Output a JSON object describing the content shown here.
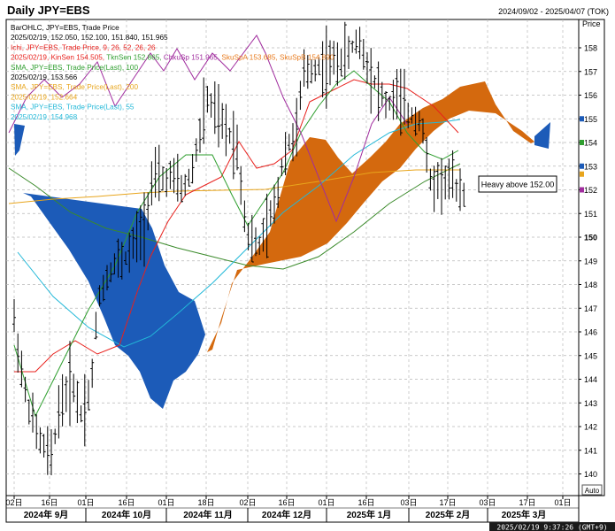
{
  "header": {
    "title": "Daily JPY=EBS",
    "date_range": "2024/09/02 - 2025/04/07 (TOK)"
  },
  "legend": [
    {
      "text": "BarOHLC, JPY=EBS, Trade Price",
      "color": "#000000"
    },
    {
      "text": "2025/02/19, 152.050, 152.100, 151.840, 151.965",
      "color": "#000000"
    },
    {
      "text": "Ichi, JPY=EBS, Trade Price,  9, 26, 52, 26, 26",
      "color": "#e8201c"
    },
    {
      "text": "2025/02/19, KinSen 154.505, TknSen 152.865, ChkuSp 151.965, SkuSpA 153.685, SkuSpB 154.890",
      "color": "#e8201c",
      "parts": [
        {
          "text": "2025/02/19, KinSen 154.505, ",
          "color": "#e8201c"
        },
        {
          "text": "TknSen 152.865, ",
          "color": "#2e9e2e"
        },
        {
          "text": "ChkuSp 151.965, ",
          "color": "#a02c9e"
        },
        {
          "text": "SkuSpA 153.685, ",
          "color": "#e87a1c"
        },
        {
          "text": "SkuSpB 154.890",
          "color": "#e87a1c"
        }
      ]
    },
    {
      "text": "SMA, JPY=EBS, Trade Price(Last),  100",
      "color": "#2e9e2e"
    },
    {
      "text": "2025/02/19, 153.566",
      "color": "#000000"
    },
    {
      "text": "SMA, JPY=EBS, Trade Price(Last),  200",
      "color": "#e8a51c"
    },
    {
      "text": "2025/02/19, 152.664",
      "color": "#e8a51c"
    },
    {
      "text": "SMA, JPY=EBS, Trade Price(Last),  55",
      "color": "#22b8d8"
    },
    {
      "text": "2025/02/19, 154.968",
      "color": "#22b8d8"
    }
  ],
  "annotation": {
    "text": "Heavy above 152.00"
  },
  "price_axis_title": "Price",
  "auto_label": "Auto",
  "footer_timestamp": "2025/02/19 9:37:26 (GMT+9)",
  "colors": {
    "cloud_bearish": "#1c5bb8",
    "cloud_bullish": "#d4690e",
    "kijun": "#e8201c",
    "tenkan": "#2e9e2e",
    "chikou": "#a02c9e",
    "sma55": "#22b8d8",
    "sma100": "#3a8a2a",
    "sma200": "#e8a51c",
    "grid": "#b8b8b8",
    "axis_marker_blue": "#1c5bb8",
    "axis_marker_green": "#2e9e2e",
    "axis_marker_purple": "#a02c9e",
    "axis_marker_orange": "#e8a51c"
  },
  "chart_data": {
    "type": "ohlc",
    "title": "Daily JPY=EBS",
    "ylabel": "Price",
    "ylim": [
      139.5,
      159.5
    ],
    "y_ticks": [
      140,
      141,
      142,
      143,
      144,
      145,
      146,
      147,
      148,
      149,
      150,
      151,
      152,
      153,
      154,
      155,
      156,
      157,
      158
    ],
    "y_ticks_bold": [
      150
    ],
    "x_day_ticks": [
      "02日",
      "16日",
      "01日",
      "16日",
      "01日",
      "18日",
      "02日",
      "16日",
      "01日",
      "16日",
      "03日",
      "17日",
      "03日",
      "17日",
      "01日"
    ],
    "x_month_labels": [
      "2024年 9月",
      "2024年 10月",
      "2024年 11月",
      "2024年 12月",
      "2025年 1月",
      "2025年 2月",
      "2025年 3月"
    ],
    "grid": true,
    "ohlc_close_path": [
      [
        "2024-09-02",
        146.5
      ],
      [
        "2024-09-06",
        143.5
      ],
      [
        "2024-09-11",
        141.5
      ],
      [
        "2024-09-16",
        140.6
      ],
      [
        "2024-09-19",
        142.8
      ],
      [
        "2024-09-24",
        144.0
      ],
      [
        "2024-09-27",
        142.5
      ],
      [
        "2024-10-01",
        143.6
      ],
      [
        "2024-10-04",
        147.5
      ],
      [
        "2024-10-09",
        148.8
      ],
      [
        "2024-10-15",
        149.2
      ],
      [
        "2024-10-21",
        150.5
      ],
      [
        "2024-10-24",
        152.3
      ],
      [
        "2024-10-31",
        152.5
      ],
      [
        "2024-11-05",
        152.0
      ],
      [
        "2024-11-08",
        152.7
      ],
      [
        "2024-11-14",
        155.8
      ],
      [
        "2024-11-19",
        154.8
      ],
      [
        "2024-11-25",
        154.0
      ],
      [
        "2024-11-29",
        150.2
      ],
      [
        "2024-12-03",
        149.5
      ],
      [
        "2024-12-06",
        150.2
      ],
      [
        "2024-12-10",
        151.5
      ],
      [
        "2024-12-13",
        153.6
      ],
      [
        "2024-12-18",
        154.5
      ],
      [
        "2024-12-20",
        156.8
      ],
      [
        "2024-12-25",
        157.2
      ],
      [
        "2024-12-31",
        157.3
      ],
      [
        "2025-01-06",
        157.7
      ],
      [
        "2025-01-10",
        158.4
      ],
      [
        "2025-01-14",
        157.2
      ],
      [
        "2025-01-17",
        156.4
      ],
      [
        "2025-01-21",
        155.5
      ],
      [
        "2025-01-24",
        156.0
      ],
      [
        "2025-01-29",
        155.2
      ],
      [
        "2025-02-03",
        155.0
      ],
      [
        "2025-02-06",
        152.3
      ],
      [
        "2025-02-11",
        152.4
      ],
      [
        "2025-02-14",
        152.3
      ],
      [
        "2025-02-19",
        151.97
      ]
    ],
    "series": [
      {
        "name": "Ichi, JPY=EBS, Trade Price,  9, 26, 52, 26, 26",
        "latest": {
          "KinSen": 154.505,
          "TknSen": 152.865,
          "ChkuSp": 151.965,
          "SkuSpA": 153.685,
          "SkuSpB": 154.89
        }
      },
      {
        "name": "SMA, JPY=EBS, Trade Price(Last),  100",
        "latest": 153.566
      },
      {
        "name": "SMA, JPY=EBS, Trade Price(Last),  200",
        "latest": 152.664
      },
      {
        "name": "SMA, JPY=EBS, Trade Price(Last),  55",
        "latest": 154.968
      }
    ],
    "latest_bar": {
      "date": "2025/02/19",
      "open": 152.05,
      "high": 152.1,
      "low": 151.84,
      "close": 151.965
    }
  }
}
